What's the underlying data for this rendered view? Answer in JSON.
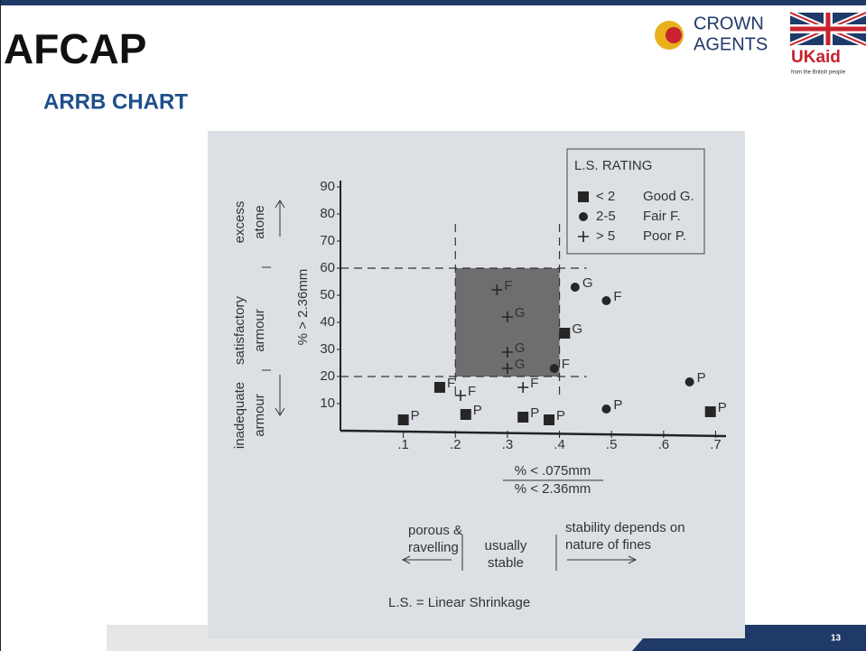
{
  "slide": {
    "logo": "AFCAP",
    "partner": [
      "CROWN",
      "AGENTS"
    ],
    "aid": "UKaid",
    "aid_note": "from the British people",
    "heading": "ARRB CHART",
    "page_number": "13"
  },
  "chart_data": {
    "type": "scatter",
    "ylabel": "% > 2.36mm",
    "xlabel": [
      "% < .075mm",
      "% < 2.36mm"
    ],
    "legend_title": "L.S. RATING",
    "series": [
      {
        "name": "< 2",
        "rating": "Good G.",
        "marker": "square",
        "color": "#262626",
        "x": [
          0.1,
          0.17,
          0.22,
          0.33,
          0.38,
          0.41,
          0.69
        ],
        "values": [
          4,
          16,
          6,
          5,
          4,
          36,
          7
        ],
        "point_labels": [
          "P",
          "F",
          "P",
          "P",
          "P",
          "G",
          "P"
        ]
      },
      {
        "name": "2-5",
        "rating": "Fair F.",
        "marker": "circle",
        "color": "#262626",
        "x": [
          0.39,
          0.43,
          0.49,
          0.49,
          0.65
        ],
        "values": [
          23,
          53,
          48,
          8,
          18
        ],
        "point_labels": [
          "F",
          "G",
          "F",
          "P",
          "P"
        ]
      },
      {
        "name": "> 5",
        "rating": "Poor P.",
        "marker": "plus",
        "color": "#262626",
        "x": [
          0.21,
          0.33,
          0.3,
          0.3,
          0.3,
          0.28
        ],
        "values": [
          13,
          16,
          23,
          29,
          42,
          52
        ],
        "point_labels": [
          "F",
          "F",
          "G",
          "G",
          "G",
          "F"
        ]
      }
    ],
    "shaded_region": {
      "x": [
        0.2,
        0.4
      ],
      "y": [
        20,
        60
      ],
      "color": "#6e6e70"
    },
    "xlim": [
      0,
      0.72
    ],
    "ylim": [
      0,
      95
    ],
    "xticks": [
      {
        "value": 0.1,
        "label": ".1"
      },
      {
        "value": 0.2,
        "label": ".2"
      },
      {
        "value": 0.3,
        "label": ".3"
      },
      {
        "value": 0.4,
        "label": ".4"
      },
      {
        "value": 0.5,
        "label": ".5"
      },
      {
        "value": 0.6,
        "label": ".6"
      },
      {
        "value": 0.7,
        "label": ".7"
      }
    ],
    "yticks": [
      10,
      20,
      30,
      40,
      50,
      60,
      70,
      80,
      90
    ],
    "zones_y": [
      [
        "excess",
        "atone"
      ],
      [
        "satisfactory",
        "armour"
      ],
      [
        "inadequate",
        "armour"
      ]
    ],
    "zones_x": [
      [
        "porous &",
        "ravelling"
      ],
      [
        "usually",
        "stable"
      ],
      [
        "stability depends on",
        "nature of fines"
      ]
    ],
    "footnote": "L.S. = Linear Shrinkage"
  }
}
